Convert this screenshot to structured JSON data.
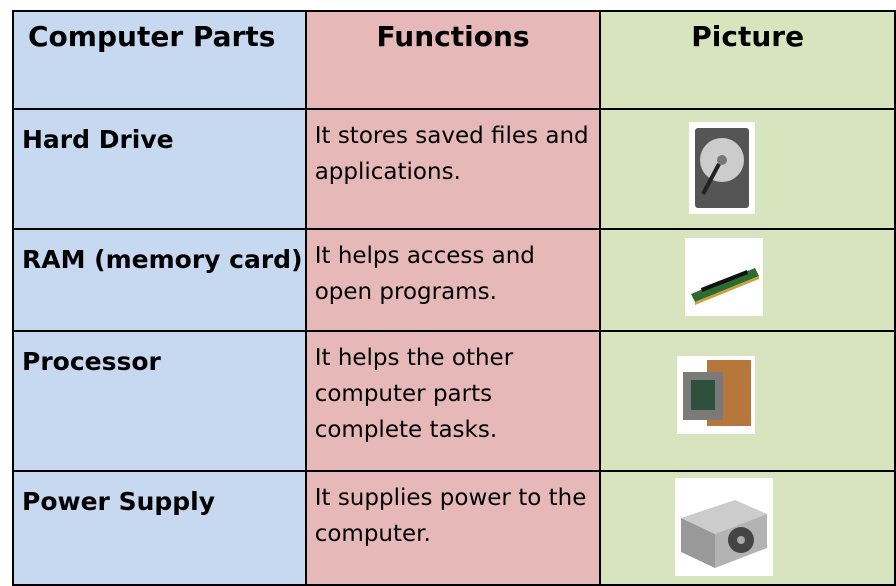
{
  "table": {
    "header": [
      "Computer Parts",
      "Functions",
      "Picture"
    ],
    "rows": [
      [
        "Hard Drive",
        "It stores saved files and applications."
      ],
      [
        "RAM (memory card)",
        "It helps access and open programs."
      ],
      [
        "Processor",
        "It helps the other computer parts complete tasks."
      ],
      [
        "Power Supply",
        "It supplies power to the computer."
      ]
    ]
  }
}
